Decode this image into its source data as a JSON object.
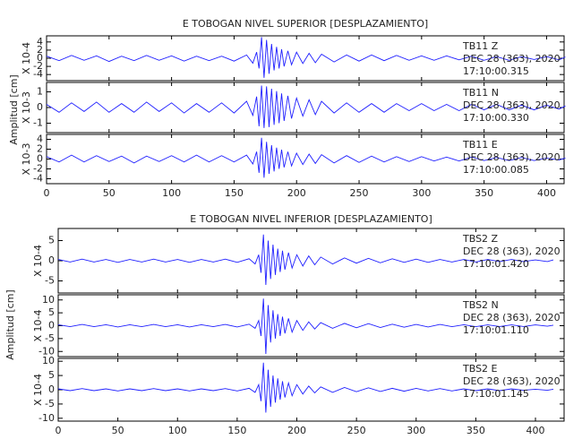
{
  "chart_data": [
    {
      "type": "line",
      "title": "E TOBOGAN NIVEL SUPERIOR [DESPLAZAMIENTO]",
      "y_label": "Amplitud [cm]",
      "xlim": [
        0,
        414
      ],
      "xticks": [
        0,
        50,
        100,
        150,
        200,
        250,
        300,
        350,
        400
      ],
      "x": [
        0,
        10,
        20,
        30,
        40,
        50,
        60,
        70,
        80,
        90,
        100,
        110,
        120,
        130,
        140,
        150,
        160,
        165,
        168,
        170,
        172,
        174,
        176,
        178,
        180,
        182,
        184,
        186,
        188,
        190,
        193,
        196,
        200,
        205,
        210,
        215,
        220,
        230,
        240,
        250,
        260,
        270,
        280,
        290,
        300,
        310,
        320,
        330,
        340,
        350,
        360,
        370,
        380,
        390,
        400,
        410,
        415
      ],
      "subplots": [
        {
          "scale_label": "X 10-4",
          "ylim": [
            -5.5,
            5.5
          ],
          "yticks": [
            -4,
            -2,
            0,
            2,
            4
          ],
          "annotation": [
            "TB11   Z",
            "DEC 28 (363), 2020",
            "17:10:00.315"
          ],
          "series": [
            {
              "color": "#1f1fff",
              "values": [
                0.5,
                -0.6,
                0.7,
                -0.5,
                0.6,
                -0.8,
                0.5,
                -0.6,
                0.7,
                -0.5,
                0.6,
                -0.7,
                0.5,
                -0.6,
                0.5,
                -0.7,
                0.8,
                -1.2,
                1.5,
                -2.5,
                5.2,
                -4.8,
                4.5,
                -3.8,
                3.5,
                -3,
                2.8,
                -2.5,
                2.2,
                -2,
                1.8,
                -1.6,
                1.5,
                -1.3,
                1.2,
                -1.1,
                1,
                -0.9,
                0.8,
                -0.7,
                0.8,
                -0.6,
                0.7,
                -0.5,
                0.6,
                -0.5,
                0.6,
                -0.4,
                0.5,
                -0.5,
                0.4,
                -0.5,
                0.4,
                -0.3,
                0.4,
                -0.4,
                0.3
              ]
            }
          ]
        },
        {
          "scale_label": "X 10-3",
          "ylim": [
            -1.6,
            1.6
          ],
          "yticks": [
            -1,
            0,
            1
          ],
          "annotation": [
            "TB11   N",
            "DEC 28 (363), 2020",
            "17:10:00.330"
          ],
          "series": [
            {
              "color": "#1f1fff",
              "values": [
                0.2,
                -0.3,
                0.3,
                -0.25,
                0.35,
                -0.3,
                0.25,
                -0.3,
                0.35,
                -0.25,
                0.3,
                -0.35,
                0.25,
                -0.3,
                0.3,
                -0.35,
                0.4,
                -0.5,
                0.7,
                -1.2,
                1.4,
                -1.3,
                1.35,
                -1.25,
                1.2,
                -1.1,
                1.05,
                -1,
                0.9,
                -0.85,
                0.75,
                -0.7,
                0.6,
                -0.55,
                0.5,
                -0.45,
                0.4,
                -0.35,
                0.3,
                -0.3,
                0.25,
                -0.3,
                0.25,
                -0.2,
                0.25,
                -0.2,
                0.2,
                -0.2,
                0.2,
                -0.15,
                0.2,
                -0.15,
                0.15,
                -0.15,
                0.15,
                -0.1,
                0.1
              ]
            }
          ]
        },
        {
          "scale_label": "X 10-3",
          "ylim": [
            -5,
            5
          ],
          "yticks": [
            -4,
            -2,
            0,
            2,
            4
          ],
          "annotation": [
            "TB11   E",
            "DEC 28 (363), 2020",
            "17:10:00.085"
          ],
          "series": [
            {
              "color": "#1f1fff",
              "values": [
                0.5,
                -0.6,
                0.8,
                -0.6,
                0.7,
                -0.5,
                0.6,
                -0.8,
                0.6,
                -0.5,
                0.7,
                -0.6,
                0.8,
                -0.6,
                0.7,
                -0.6,
                0.8,
                -1,
                1.5,
                -2.8,
                4.3,
                -3.8,
                3.5,
                -3,
                2.8,
                -2.5,
                2.3,
                -2,
                1.9,
                -1.7,
                1.5,
                -1.4,
                1.2,
                -1.1,
                1,
                -0.9,
                0.9,
                -0.8,
                0.7,
                -0.7,
                0.6,
                -0.6,
                0.5,
                -0.5,
                0.5,
                -0.4,
                0.4,
                -0.4,
                0.4,
                -0.3,
                0.3,
                -0.3,
                0.3,
                -0.3,
                0.2,
                -0.2,
                0.2
              ]
            }
          ]
        }
      ]
    },
    {
      "type": "line",
      "title": "E TOBOGAN NIVEL INFERIOR [DESPLAZAMIENTO]",
      "y_label": "Amplitud [cm]",
      "xlim": [
        0,
        424
      ],
      "xticks": [
        0,
        50,
        100,
        150,
        200,
        250,
        300,
        350,
        400
      ],
      "x": [
        0,
        10,
        20,
        30,
        40,
        50,
        60,
        70,
        80,
        90,
        100,
        110,
        120,
        130,
        140,
        150,
        160,
        165,
        168,
        170,
        172,
        174,
        176,
        178,
        180,
        182,
        184,
        186,
        188,
        190,
        193,
        196,
        200,
        205,
        210,
        215,
        220,
        230,
        240,
        250,
        260,
        270,
        280,
        290,
        300,
        310,
        320,
        330,
        340,
        350,
        360,
        370,
        380,
        390,
        400,
        410,
        415
      ],
      "subplots": [
        {
          "scale_label": "X 10-4",
          "ylim": [
            -8,
            8
          ],
          "yticks": [
            -5,
            0,
            5
          ],
          "annotation": [
            "TBS2   Z",
            "DEC 28 (363), 2020",
            "17:10:01.420"
          ],
          "series": [
            {
              "color": "#1f1fff",
              "values": [
                0.3,
                -0.3,
                0.4,
                -0.3,
                0.3,
                -0.4,
                0.3,
                -0.3,
                0.4,
                -0.3,
                0.3,
                -0.4,
                0.3,
                -0.3,
                0.4,
                -0.4,
                0.5,
                -0.8,
                1.5,
                -3,
                6.5,
                -6,
                5,
                -4.5,
                4,
                -3.5,
                3,
                -2.8,
                2.5,
                -2.2,
                2,
                -1.8,
                1.5,
                -1.3,
                1.2,
                -1,
                0.9,
                -0.8,
                0.7,
                -0.6,
                0.6,
                -0.5,
                0.5,
                -0.4,
                0.4,
                -0.4,
                0.3,
                -0.3,
                0.3,
                -0.3,
                0.3,
                -0.2,
                0.3,
                -0.2,
                0.2,
                -0.2,
                0.2
              ]
            }
          ]
        },
        {
          "scale_label": "X 10-4",
          "ylim": [
            -12,
            12
          ],
          "yticks": [
            -10,
            -5,
            0,
            5,
            10
          ],
          "annotation": [
            "TBS2   N",
            "DEC 28 (363), 2020",
            "17:10:01.110"
          ],
          "series": [
            {
              "color": "#1f1fff",
              "values": [
                0.4,
                -0.4,
                0.5,
                -0.4,
                0.4,
                -0.5,
                0.4,
                -0.4,
                0.5,
                -0.4,
                0.4,
                -0.5,
                0.4,
                -0.4,
                0.5,
                -0.5,
                0.6,
                -1,
                2,
                -4,
                10.5,
                -11,
                8,
                -6.5,
                6,
                -5,
                4.5,
                -4,
                3.5,
                -3,
                2.8,
                -2.5,
                2,
                -1.8,
                1.5,
                -1.3,
                1.2,
                -1,
                0.9,
                -0.8,
                0.8,
                -0.7,
                0.6,
                -0.6,
                0.5,
                -0.5,
                0.5,
                -0.4,
                0.4,
                -0.4,
                0.3,
                -0.3,
                0.3,
                -0.3,
                0.3,
                -0.2,
                0.2
              ]
            }
          ]
        },
        {
          "scale_label": "X 10-4",
          "ylim": [
            -11,
            11
          ],
          "yticks": [
            -10,
            -5,
            0,
            5,
            10
          ],
          "annotation": [
            "TBS2   E",
            "DEC 28 (363), 2020",
            "17:10:01.145"
          ],
          "series": [
            {
              "color": "#1f1fff",
              "values": [
                0.3,
                -0.3,
                0.4,
                -0.3,
                0.3,
                -0.4,
                0.3,
                -0.3,
                0.4,
                -0.3,
                0.3,
                -0.4,
                0.3,
                -0.3,
                0.4,
                -0.4,
                0.5,
                -0.9,
                1.8,
                -4,
                9.5,
                -8,
                7,
                -6,
                5,
                -4.5,
                4,
                -3.5,
                3,
                -2.7,
                2.4,
                -2.1,
                1.8,
                -1.5,
                1.3,
                -1.1,
                1,
                -0.9,
                0.8,
                -0.7,
                0.7,
                -0.6,
                0.5,
                -0.5,
                0.5,
                -0.4,
                0.4,
                -0.4,
                0.3,
                -0.3,
                0.3,
                -0.3,
                0.3,
                -0.2,
                0.2,
                -0.2,
                0.2
              ]
            }
          ]
        }
      ]
    }
  ]
}
